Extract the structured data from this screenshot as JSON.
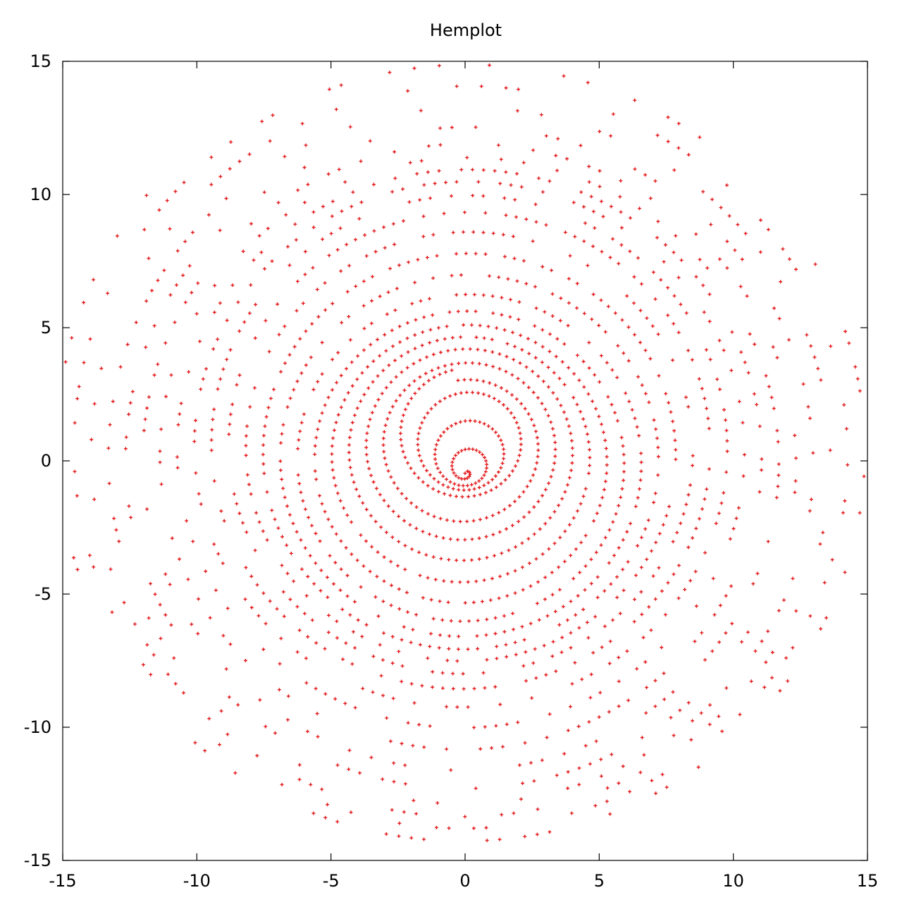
{
  "chart_data": {
    "type": "scatter",
    "title": "Hemplot",
    "xlim": [
      -15,
      15
    ],
    "ylim": [
      -15,
      15
    ],
    "x_ticks": [
      -15,
      -10,
      -5,
      0,
      5,
      10,
      15
    ],
    "y_ticks": [
      -15,
      -10,
      -5,
      0,
      5,
      10,
      15
    ],
    "x_tick_labels": [
      "-15",
      "-10",
      "-5",
      "0",
      "5",
      "10",
      "15"
    ],
    "y_tick_labels": [
      "-15",
      "-10",
      "-5",
      "0",
      "5",
      "10",
      "15"
    ],
    "grid": false,
    "series": [
      {
        "color": "#e31a1c",
        "marker": "plus",
        "curve": "hemplot",
        "t_start": 0,
        "t_end": 150,
        "points": 3000,
        "note": ""
      }
    ]
  },
  "colors": {
    "series": "#e31a1c",
    "axes": "#000000",
    "background": "#ffffff"
  }
}
